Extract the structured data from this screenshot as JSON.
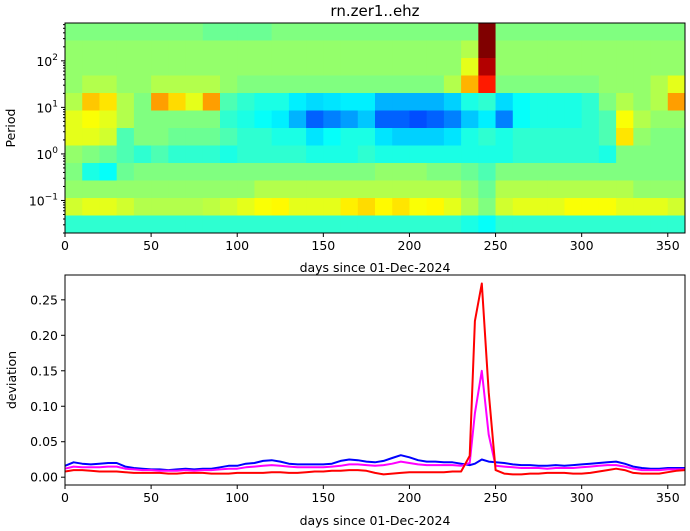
{
  "chart_data": [
    {
      "type": "heatmap",
      "title": "rn.zer1..ehz",
      "xlabel": "days since 01-Dec-2024",
      "ylabel": "Period",
      "xlim": [
        0,
        360
      ],
      "ylim": [
        0.02,
        650
      ],
      "yscale": "log",
      "colormap": "jet",
      "value_range": [
        0,
        1
      ],
      "xticks": [
        "0",
        "50",
        "100",
        "150",
        "200",
        "250",
        "300",
        "350"
      ],
      "xtick_values": [
        0,
        50,
        100,
        150,
        200,
        250,
        300,
        350
      ],
      "yticks": [
        {
          "base": "10",
          "exp": "2",
          "value": 100
        },
        {
          "base": "10",
          "exp": "1",
          "value": 10
        },
        {
          "base": "10",
          "exp": "0",
          "value": 1
        },
        {
          "base": "10",
          "exp": "−1",
          "value": 0.1
        }
      ],
      "column_days_start": 0,
      "column_days_width": 10,
      "rows_top_to_bottom": [
        [
          0.5,
          0.5,
          0.5,
          0.5,
          0.5,
          0.5,
          0.5,
          0.5,
          0.48,
          0.48,
          0.48,
          0.48,
          0.5,
          0.5,
          0.5,
          0.5,
          0.5,
          0.5,
          0.5,
          0.5,
          0.5,
          0.5,
          0.5,
          0.5,
          1.0,
          0.5,
          0.5,
          0.5,
          0.5,
          0.5,
          0.5,
          0.5,
          0.5,
          0.5,
          0.5,
          0.5
        ],
        [
          0.52,
          0.52,
          0.52,
          0.52,
          0.52,
          0.52,
          0.52,
          0.52,
          0.52,
          0.52,
          0.52,
          0.52,
          0.52,
          0.52,
          0.52,
          0.52,
          0.52,
          0.52,
          0.52,
          0.52,
          0.52,
          0.52,
          0.52,
          0.55,
          1.0,
          0.52,
          0.52,
          0.52,
          0.52,
          0.52,
          0.52,
          0.52,
          0.52,
          0.52,
          0.52,
          0.52
        ],
        [
          0.52,
          0.52,
          0.52,
          0.52,
          0.52,
          0.52,
          0.52,
          0.52,
          0.52,
          0.52,
          0.52,
          0.52,
          0.52,
          0.52,
          0.52,
          0.52,
          0.52,
          0.52,
          0.52,
          0.52,
          0.52,
          0.52,
          0.52,
          0.6,
          0.95,
          0.52,
          0.52,
          0.52,
          0.52,
          0.52,
          0.52,
          0.52,
          0.52,
          0.52,
          0.52,
          0.52
        ],
        [
          0.52,
          0.55,
          0.55,
          0.52,
          0.52,
          0.55,
          0.55,
          0.55,
          0.55,
          0.52,
          0.5,
          0.5,
          0.5,
          0.5,
          0.5,
          0.5,
          0.5,
          0.5,
          0.5,
          0.5,
          0.5,
          0.5,
          0.55,
          0.7,
          0.85,
          0.5,
          0.5,
          0.5,
          0.5,
          0.5,
          0.5,
          0.52,
          0.52,
          0.52,
          0.55,
          0.6
        ],
        [
          0.55,
          0.68,
          0.65,
          0.55,
          0.5,
          0.72,
          0.66,
          0.6,
          0.72,
          0.45,
          0.42,
          0.4,
          0.4,
          0.36,
          0.34,
          0.35,
          0.36,
          0.36,
          0.3,
          0.3,
          0.3,
          0.3,
          0.33,
          0.4,
          0.42,
          0.34,
          0.38,
          0.4,
          0.4,
          0.4,
          0.42,
          0.5,
          0.55,
          0.52,
          0.55,
          0.72
        ],
        [
          0.6,
          0.62,
          0.6,
          0.55,
          0.5,
          0.5,
          0.5,
          0.5,
          0.5,
          0.42,
          0.4,
          0.38,
          0.36,
          0.3,
          0.22,
          0.25,
          0.28,
          0.32,
          0.22,
          0.22,
          0.2,
          0.22,
          0.25,
          0.32,
          0.36,
          0.25,
          0.38,
          0.4,
          0.4,
          0.4,
          0.42,
          0.45,
          0.62,
          0.55,
          0.52,
          0.52
        ],
        [
          0.6,
          0.6,
          0.58,
          0.45,
          0.5,
          0.5,
          0.48,
          0.48,
          0.48,
          0.45,
          0.42,
          0.42,
          0.4,
          0.4,
          0.35,
          0.38,
          0.4,
          0.4,
          0.35,
          0.33,
          0.33,
          0.33,
          0.35,
          0.4,
          0.42,
          0.4,
          0.42,
          0.42,
          0.42,
          0.42,
          0.42,
          0.45,
          0.65,
          0.52,
          0.5,
          0.5
        ],
        [
          0.52,
          0.5,
          0.48,
          0.45,
          0.42,
          0.45,
          0.42,
          0.42,
          0.42,
          0.4,
          0.42,
          0.42,
          0.42,
          0.42,
          0.4,
          0.4,
          0.4,
          0.42,
          0.4,
          0.4,
          0.4,
          0.4,
          0.4,
          0.4,
          0.4,
          0.4,
          0.42,
          0.42,
          0.42,
          0.42,
          0.42,
          0.4,
          0.5,
          0.5,
          0.5,
          0.5
        ],
        [
          0.5,
          0.4,
          0.38,
          0.48,
          0.5,
          0.5,
          0.5,
          0.5,
          0.5,
          0.5,
          0.5,
          0.5,
          0.5,
          0.5,
          0.5,
          0.5,
          0.5,
          0.5,
          0.52,
          0.52,
          0.52,
          0.5,
          0.5,
          0.48,
          0.45,
          0.5,
          0.5,
          0.5,
          0.5,
          0.5,
          0.5,
          0.5,
          0.5,
          0.5,
          0.5,
          0.5
        ],
        [
          0.52,
          0.52,
          0.52,
          0.52,
          0.52,
          0.52,
          0.52,
          0.52,
          0.52,
          0.52,
          0.52,
          0.55,
          0.55,
          0.55,
          0.55,
          0.55,
          0.55,
          0.55,
          0.55,
          0.55,
          0.55,
          0.55,
          0.55,
          0.52,
          0.48,
          0.55,
          0.55,
          0.55,
          0.55,
          0.55,
          0.55,
          0.55,
          0.55,
          0.52,
          0.52,
          0.52
        ],
        [
          0.58,
          0.6,
          0.6,
          0.58,
          0.55,
          0.55,
          0.55,
          0.55,
          0.56,
          0.58,
          0.6,
          0.62,
          0.63,
          0.6,
          0.6,
          0.6,
          0.64,
          0.66,
          0.63,
          0.65,
          0.62,
          0.63,
          0.6,
          0.55,
          0.5,
          0.58,
          0.6,
          0.6,
          0.6,
          0.62,
          0.62,
          0.62,
          0.6,
          0.6,
          0.6,
          0.58
        ],
        [
          0.42,
          0.42,
          0.42,
          0.42,
          0.42,
          0.42,
          0.42,
          0.42,
          0.42,
          0.42,
          0.42,
          0.42,
          0.42,
          0.42,
          0.42,
          0.42,
          0.42,
          0.42,
          0.42,
          0.42,
          0.42,
          0.42,
          0.42,
          0.4,
          0.38,
          0.42,
          0.42,
          0.42,
          0.42,
          0.42,
          0.42,
          0.42,
          0.42,
          0.42,
          0.42,
          0.42
        ]
      ]
    },
    {
      "type": "line",
      "xlabel": "days since 01-Dec-2024",
      "ylabel": "deviation",
      "xlim": [
        0,
        360
      ],
      "ylim": [
        -0.011,
        0.285
      ],
      "grid": false,
      "xticks": [
        "0",
        "50",
        "100",
        "150",
        "200",
        "250",
        "300",
        "350"
      ],
      "xtick_values": [
        0,
        50,
        100,
        150,
        200,
        250,
        300,
        350
      ],
      "yticks": [
        "0.00",
        "0.05",
        "0.10",
        "0.15",
        "0.20",
        "0.25"
      ],
      "ytick_values": [
        0,
        0.05,
        0.1,
        0.15,
        0.2,
        0.25
      ],
      "x": [
        0,
        5,
        10,
        15,
        20,
        25,
        30,
        35,
        40,
        45,
        50,
        55,
        60,
        65,
        70,
        75,
        80,
        85,
        90,
        95,
        100,
        105,
        110,
        115,
        120,
        125,
        130,
        135,
        140,
        145,
        150,
        155,
        160,
        165,
        170,
        175,
        180,
        185,
        190,
        195,
        200,
        205,
        210,
        215,
        220,
        225,
        230,
        235,
        238,
        242,
        246,
        250,
        255,
        260,
        265,
        270,
        275,
        280,
        285,
        290,
        295,
        300,
        305,
        310,
        315,
        320,
        325,
        330,
        335,
        340,
        345,
        350,
        355,
        360,
        365
      ],
      "series": [
        {
          "color": "#0000ff",
          "values": [
            0.016,
            0.021,
            0.019,
            0.018,
            0.019,
            0.02,
            0.02,
            0.015,
            0.013,
            0.012,
            0.011,
            0.011,
            0.01,
            0.011,
            0.012,
            0.011,
            0.012,
            0.012,
            0.014,
            0.016,
            0.016,
            0.019,
            0.02,
            0.023,
            0.024,
            0.022,
            0.019,
            0.018,
            0.018,
            0.018,
            0.018,
            0.019,
            0.023,
            0.025,
            0.024,
            0.022,
            0.021,
            0.023,
            0.027,
            0.031,
            0.028,
            0.024,
            0.022,
            0.022,
            0.021,
            0.021,
            0.019,
            0.017,
            0.019,
            0.025,
            0.022,
            0.021,
            0.02,
            0.018,
            0.017,
            0.017,
            0.016,
            0.016,
            0.017,
            0.016,
            0.017,
            0.018,
            0.019,
            0.02,
            0.021,
            0.022,
            0.019,
            0.015,
            0.013,
            0.012,
            0.012,
            0.013,
            0.013,
            0.013,
            0.013
          ]
        },
        {
          "color": "#ff00ff",
          "values": [
            0.012,
            0.015,
            0.014,
            0.014,
            0.014,
            0.015,
            0.015,
            0.012,
            0.011,
            0.01,
            0.01,
            0.009,
            0.009,
            0.009,
            0.01,
            0.009,
            0.01,
            0.01,
            0.011,
            0.012,
            0.012,
            0.014,
            0.015,
            0.016,
            0.017,
            0.016,
            0.015,
            0.014,
            0.014,
            0.014,
            0.014,
            0.015,
            0.016,
            0.018,
            0.018,
            0.017,
            0.016,
            0.017,
            0.019,
            0.022,
            0.02,
            0.018,
            0.017,
            0.017,
            0.017,
            0.017,
            0.016,
            0.02,
            0.09,
            0.15,
            0.06,
            0.016,
            0.015,
            0.014,
            0.013,
            0.013,
            0.013,
            0.012,
            0.013,
            0.013,
            0.013,
            0.014,
            0.015,
            0.016,
            0.017,
            0.017,
            0.015,
            0.012,
            0.01,
            0.01,
            0.01,
            0.011,
            0.011,
            0.011,
            0.012
          ]
        },
        {
          "color": "#ff0000",
          "values": [
            0.008,
            0.01,
            0.01,
            0.009,
            0.008,
            0.008,
            0.008,
            0.007,
            0.006,
            0.006,
            0.006,
            0.006,
            0.005,
            0.005,
            0.006,
            0.006,
            0.006,
            0.005,
            0.005,
            0.005,
            0.006,
            0.006,
            0.006,
            0.006,
            0.007,
            0.007,
            0.006,
            0.006,
            0.007,
            0.008,
            0.008,
            0.009,
            0.009,
            0.01,
            0.01,
            0.009,
            0.006,
            0.004,
            0.005,
            0.006,
            0.007,
            0.007,
            0.007,
            0.007,
            0.007,
            0.008,
            0.008,
            0.03,
            0.22,
            0.273,
            0.12,
            0.01,
            0.005,
            0.004,
            0.004,
            0.005,
            0.005,
            0.006,
            0.006,
            0.006,
            0.005,
            0.005,
            0.006,
            0.008,
            0.01,
            0.012,
            0.01,
            0.006,
            0.005,
            0.005,
            0.005,
            0.007,
            0.009,
            0.01,
            0.011
          ]
        }
      ]
    }
  ]
}
